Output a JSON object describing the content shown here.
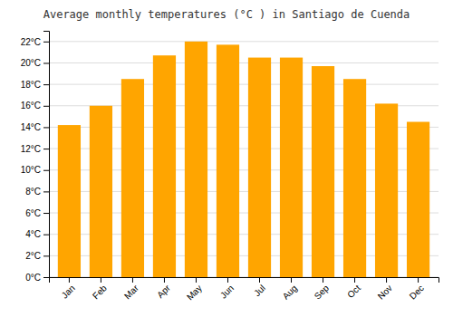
{
  "chart_data": {
    "type": "bar",
    "title": "Average monthly temperatures (°C ) in Santiago de Cuenda",
    "categories": [
      "Jan",
      "Feb",
      "Mar",
      "Apr",
      "May",
      "Jun",
      "Jul",
      "Aug",
      "Sep",
      "Oct",
      "Nov",
      "Dec"
    ],
    "values": [
      14.2,
      16.0,
      18.5,
      20.7,
      22.0,
      21.7,
      20.5,
      20.5,
      19.7,
      18.5,
      16.2,
      14.5
    ],
    "color": "#FFA500",
    "ylim": [
      0,
      23
    ],
    "yticks": [
      {
        "value": 0,
        "label": "0°C"
      },
      {
        "value": 2,
        "label": "2°C"
      },
      {
        "value": 4,
        "label": "4°C"
      },
      {
        "value": 6,
        "label": "6°C"
      },
      {
        "value": 8,
        "label": "8°C"
      },
      {
        "value": 10,
        "label": "10°C"
      },
      {
        "value": 12,
        "label": "12°C"
      },
      {
        "value": 14,
        "label": "14°C"
      },
      {
        "value": 16,
        "label": "16°C"
      },
      {
        "value": 18,
        "label": "18°C"
      },
      {
        "value": 20,
        "label": "20°C"
      },
      {
        "value": 22,
        "label": "22°C"
      }
    ],
    "grid": true
  }
}
